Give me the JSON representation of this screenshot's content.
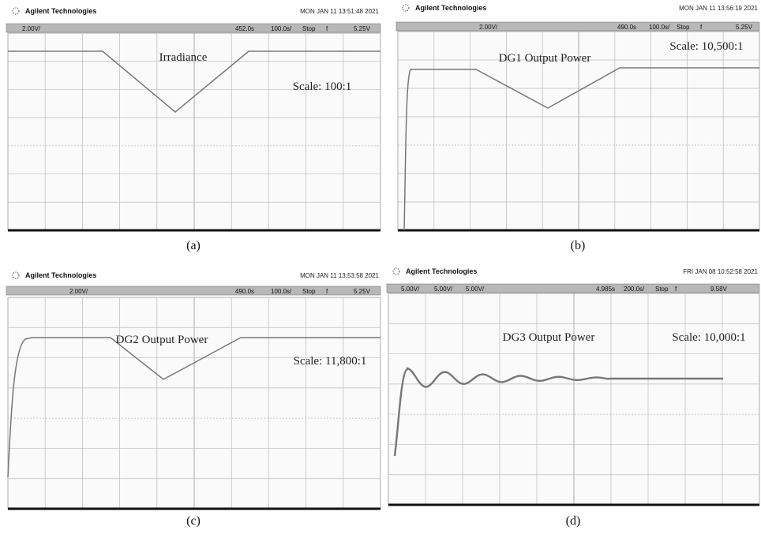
{
  "panels": [
    {
      "brand": "Agilent Technologies",
      "timestamp": "MON JAN 11 13:51:48 2021",
      "status": [
        "2.00V/",
        "452.0s",
        "100.0s/",
        "Stop",
        "f",
        "5.25V"
      ],
      "title": "Irradiance",
      "scale": "Scale: 100:1",
      "caption": "(a)"
    },
    {
      "brand": "Agilent Technologies",
      "timestamp": "MON JAN 11 13:56:19 2021",
      "status": [
        "2.00V/",
        "490.0s",
        "100.0s/",
        "Stop",
        "f",
        "5.25V"
      ],
      "title": "DG1 Output Power",
      "scale": "Scale: 10,500:1",
      "caption": "(b)"
    },
    {
      "brand": "Agilent Technologies",
      "timestamp": "MON JAN 11 13:53:58 2021",
      "status": [
        "2.00V/",
        "490.0s",
        "100.0s/",
        "Stop",
        "f",
        "5.25V"
      ],
      "title": "DG2 Output Power",
      "scale": "Scale: 11,800:1",
      "caption": "(c)"
    },
    {
      "brand": "Agilent Technologies",
      "timestamp": "FRI JAN 08 10:52:58 2021",
      "status": [
        "5.00V/",
        "5.00V/",
        "5.00V/",
        "4.985s",
        "200.0s/",
        "Stop",
        "f",
        "9.58V"
      ],
      "title": "DG3 Output Power",
      "scale": "Scale: 10,000:1",
      "caption": "(d)"
    }
  ]
}
